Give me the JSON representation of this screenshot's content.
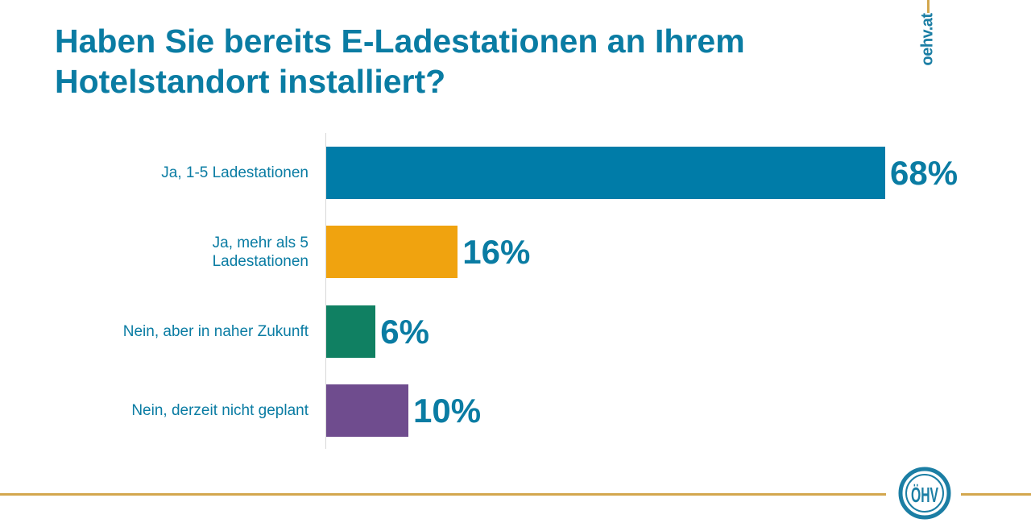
{
  "title_lines": [
    "Haben Sie bereits E-Ladestationen an Ihrem",
    "Hotelstandort installiert?"
  ],
  "site": "oehv.at",
  "logo_text": "ÖHV",
  "chart_data": {
    "type": "bar",
    "orientation": "horizontal",
    "title": "Haben Sie bereits E-Ladestationen an Ihrem Hotelstandort installiert?",
    "categories": [
      "Ja, 1-5 Ladestationen",
      "Ja, mehr als 5 Ladestationen",
      "Nein, aber in naher Zukunft",
      "Nein, derzeit nicht geplant"
    ],
    "category_lines": [
      [
        "Ja, 1-5 Ladestationen"
      ],
      [
        "Ja, mehr als 5",
        "Ladestationen"
      ],
      [
        "Nein, aber in naher Zukunft"
      ],
      [
        "Nein, derzeit nicht geplant"
      ]
    ],
    "values": [
      68,
      16,
      6,
      10
    ],
    "value_labels": [
      "68%",
      "16%",
      "6%",
      "10%"
    ],
    "colors": [
      "#007ca8",
      "#f0a30f",
      "#108062",
      "#6f4c8e"
    ],
    "xlim": [
      0,
      100
    ],
    "grid": false
  }
}
